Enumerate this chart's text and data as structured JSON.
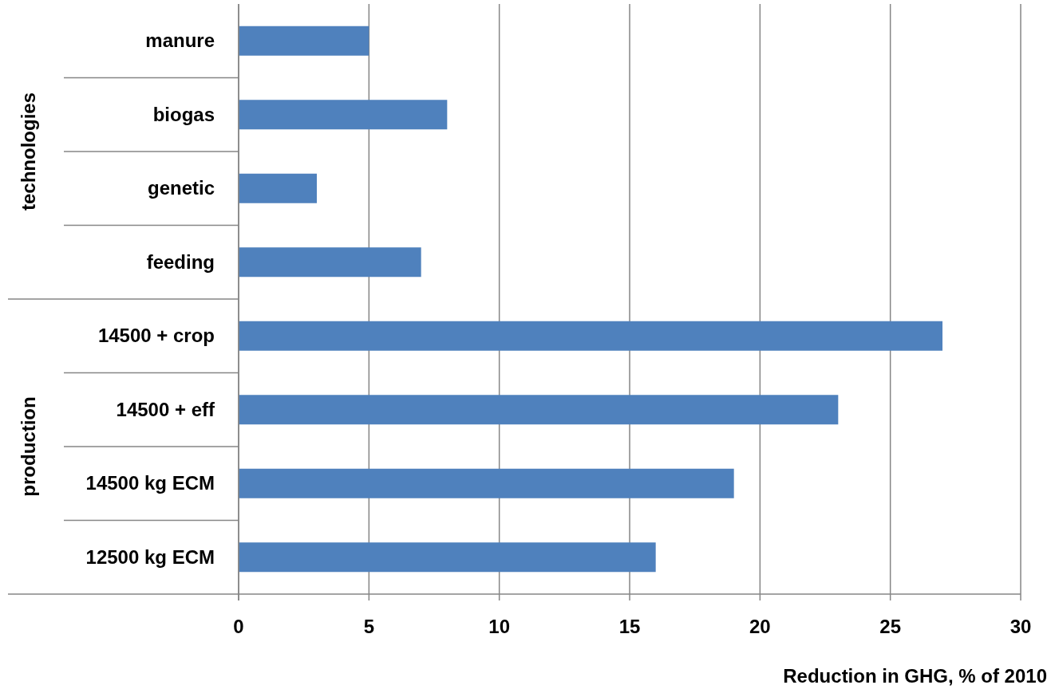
{
  "chart_data": {
    "type": "bar",
    "orientation": "horizontal",
    "categories": [
      "manure",
      "biogas",
      "genetic",
      "feeding",
      "14500 + crop",
      "14500 + eff",
      "14500 kg ECM",
      "12500 kg ECM"
    ],
    "values": [
      5,
      8,
      3,
      7,
      27,
      23,
      19,
      16
    ],
    "color": "#4f81bd",
    "xlim": [
      0,
      30
    ],
    "xticks": [
      0,
      5,
      10,
      15,
      20,
      25,
      30
    ],
    "xlabel": "Reduction in GHG, % of 2010",
    "annotations": [
      "technologies",
      "production"
    ],
    "grid": "x"
  }
}
